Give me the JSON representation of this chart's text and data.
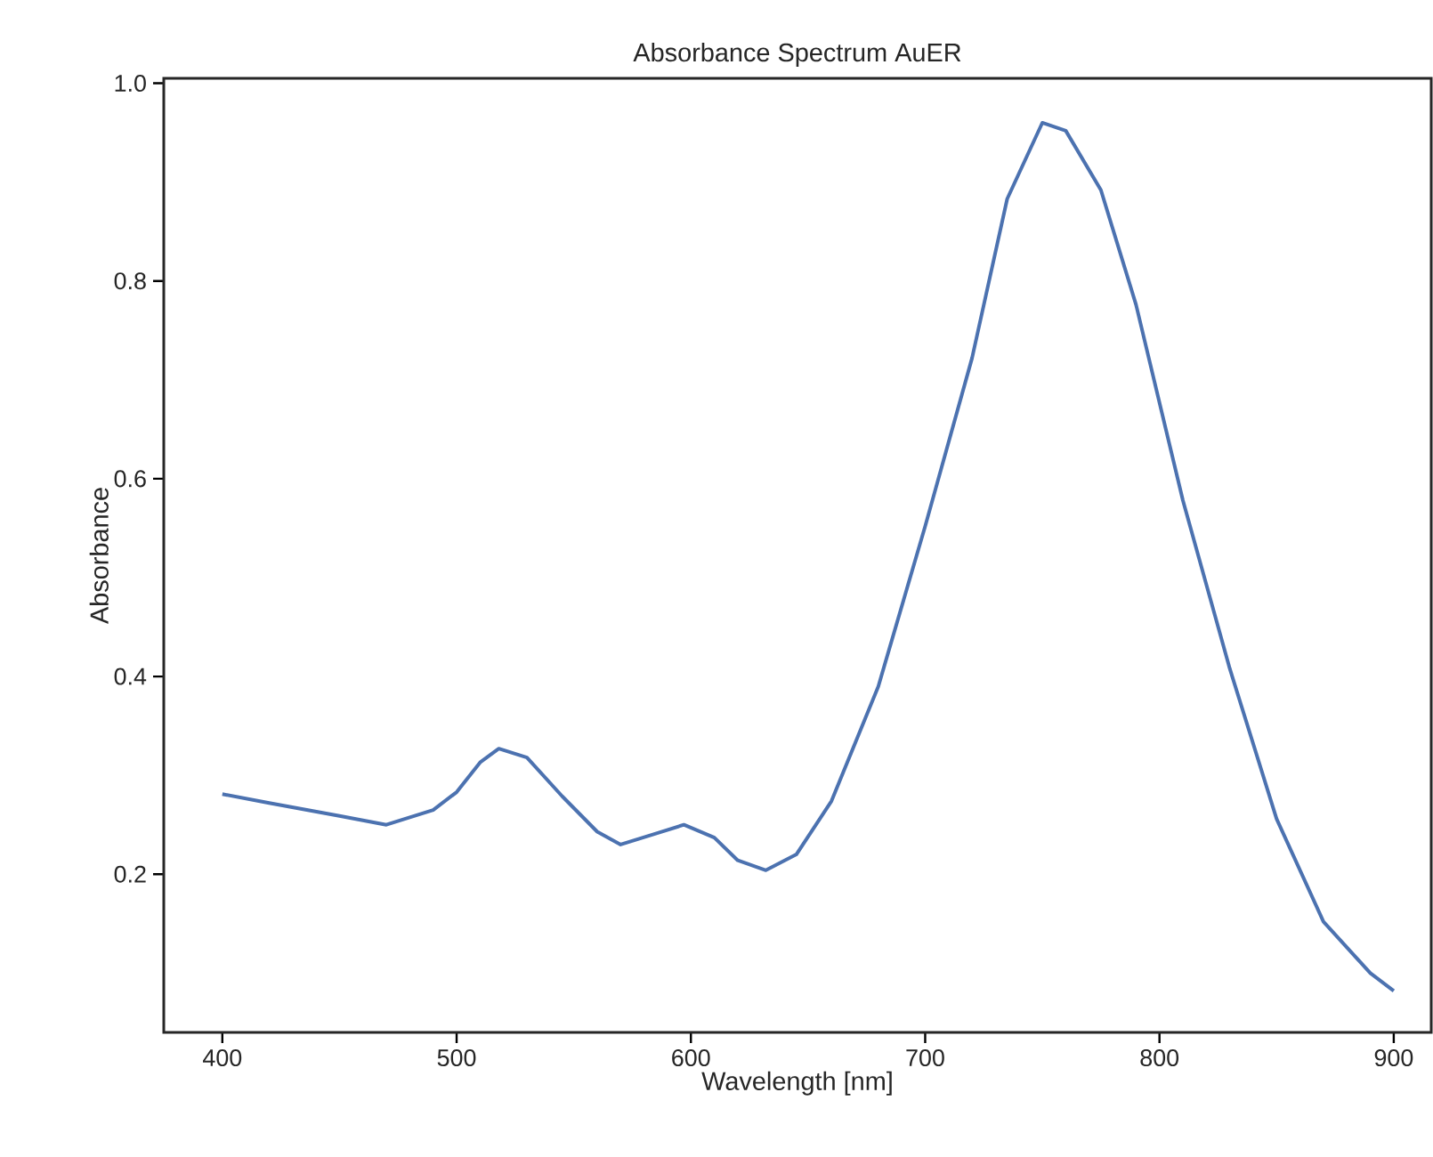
{
  "chart_data": {
    "type": "line",
    "title": "Absorbance Spectrum AuER",
    "xlabel": "Wavelength [nm]",
    "ylabel": "Absorbance",
    "xlim": [
      375,
      916
    ],
    "ylim": [
      0.04,
      1.005
    ],
    "xticks": [
      400,
      500,
      600,
      700,
      800,
      900
    ],
    "yticks": [
      {
        "value": 0.2,
        "label": "0.2"
      },
      {
        "value": 0.4,
        "label": "0.4"
      },
      {
        "value": 0.6,
        "label": "0.6"
      },
      {
        "value": 0.8,
        "label": "0.8"
      },
      {
        "value": 1.0,
        "label": "1.0"
      }
    ],
    "series": [
      {
        "color": "#4c72b0",
        "x": [
          400,
          420,
          450,
          470,
          490,
          500,
          510,
          518,
          530,
          545,
          560,
          570,
          585,
          597,
          610,
          620,
          632,
          645,
          660,
          680,
          700,
          720,
          735,
          750,
          760,
          775,
          790,
          810,
          830,
          850,
          870,
          890,
          900
        ],
        "values": [
          0.281,
          0.272,
          0.259,
          0.25,
          0.265,
          0.283,
          0.313,
          0.327,
          0.318,
          0.279,
          0.243,
          0.23,
          0.241,
          0.25,
          0.237,
          0.214,
          0.204,
          0.22,
          0.274,
          0.39,
          0.552,
          0.722,
          0.883,
          0.96,
          0.952,
          0.892,
          0.776,
          0.578,
          0.408,
          0.256,
          0.152,
          0.1,
          0.082
        ]
      }
    ]
  }
}
